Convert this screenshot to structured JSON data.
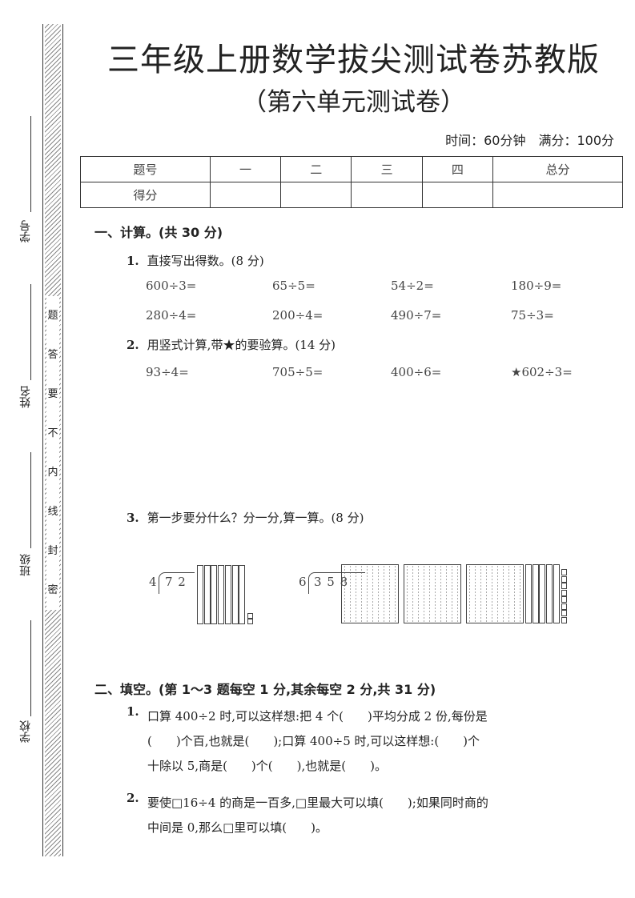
{
  "title": "三年级上册数学拔尖测试卷苏教版",
  "subtitle": "（第六单元测试卷）",
  "time_info": "时间：60分钟　满分：100分",
  "score_table": {
    "header": [
      "题号",
      "一",
      "二",
      "三",
      "四",
      "总分"
    ],
    "row_label": "得分"
  },
  "margin": {
    "fields": [
      "学号",
      "姓名",
      "班级",
      "学校"
    ],
    "seal_text": [
      "题",
      "答",
      "要",
      "不",
      "内",
      "线",
      "封",
      "密"
    ]
  },
  "section1": {
    "title": "一、计算。(共 30 分)",
    "q1": {
      "num": "1.",
      "text": "直接写出得数。(8 分)",
      "exprs": [
        "600÷3=",
        "65÷5=",
        "54÷2=",
        "180÷9=",
        "280÷4=",
        "200÷4=",
        "490÷7=",
        "75÷3="
      ]
    },
    "q2": {
      "num": "2.",
      "text": "用竖式计算,带★的要验算。(14 分)",
      "exprs": [
        "93÷4=",
        "705÷5=",
        "400÷6=",
        "★602÷3="
      ]
    },
    "q3": {
      "num": "3.",
      "text": "第一步要分什么？分一分,算一算。(8 分)",
      "div1": {
        "divisor": "4",
        "dividend": "7 2",
        "tens": 7,
        "ones": 2
      },
      "div2": {
        "divisor": "6",
        "dividend": "3 5 8",
        "hundreds": 3,
        "tens": 5,
        "ones": 8
      }
    }
  },
  "section2": {
    "title": "二、填空。(第 1～3 题每空 1 分,其余每空 2 分,共 31 分)",
    "q1": {
      "num": "1.",
      "lines": [
        "口算 400÷2 时,可以这样想:把 4 个(　　)平均分成 2 份,每份是",
        "(　　)个百,也就是(　　);口算 400÷5 时,可以这样想:(　　)个",
        "十除以 5,商是(　　)个(　　),也就是(　　)。"
      ]
    },
    "q2": {
      "num": "2.",
      "lines": [
        "要使□16÷4 的商是一百多,□里最大可以填(　　);如果同时商的",
        "中间是 0,那么□里可以填(　　)。"
      ]
    }
  }
}
